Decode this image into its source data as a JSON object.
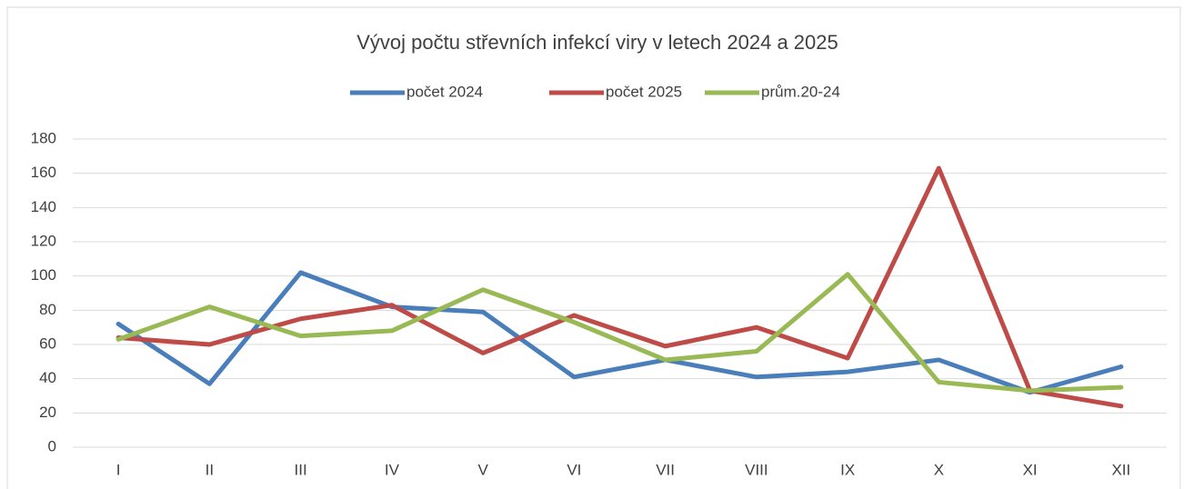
{
  "chart_data": {
    "type": "line",
    "title": "Vývoj počtu střevních infekcí viry v letech 2024 a 2025",
    "categories": [
      "I",
      "II",
      "III",
      "IV",
      "V",
      "VI",
      "VII",
      "VIII",
      "IX",
      "X",
      "XI",
      "XII"
    ],
    "series": [
      {
        "name": "počet 2024",
        "color": "#4a7ebb",
        "values": [
          72,
          37,
          102,
          82,
          79,
          41,
          51,
          41,
          44,
          51,
          32,
          47
        ]
      },
      {
        "name": "počet 2025",
        "color": "#be4b48",
        "values": [
          64,
          60,
          75,
          83,
          55,
          77,
          59,
          70,
          52,
          163,
          33,
          24
        ]
      },
      {
        "name": "prům.20-24",
        "color": "#98b954",
        "values": [
          63,
          82,
          65,
          68,
          92,
          73,
          51,
          56,
          101,
          38,
          33,
          35
        ]
      }
    ],
    "ylim": [
      0,
      180
    ],
    "yticks": [
      0,
      20,
      40,
      60,
      80,
      100,
      120,
      140,
      160,
      180
    ],
    "grid": true,
    "legend": "top"
  }
}
